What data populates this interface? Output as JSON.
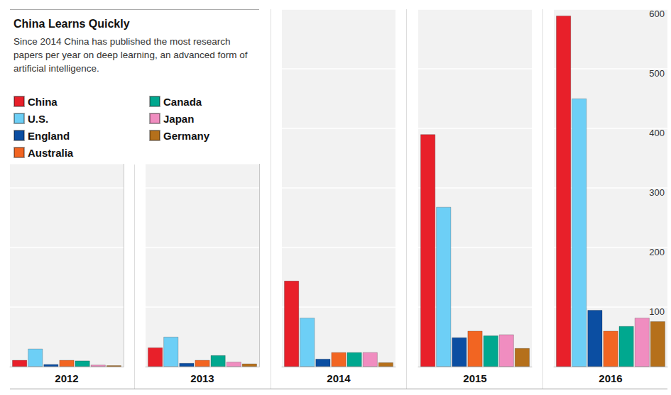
{
  "chart_data": [
    {
      "type": "bar",
      "title": "China Learns Quickly",
      "subtitle": "Since 2014 China has published the most research papers per year on deep learning, an advanced form of artificial intelligence.",
      "legend": "top-left",
      "categories": [
        "2012"
      ],
      "series": [
        {
          "name": "China",
          "color": "#e8202a",
          "values": [
            11
          ]
        },
        {
          "name": "U.S.",
          "color": "#6dcff6",
          "values": [
            30
          ]
        },
        {
          "name": "England",
          "color": "#0b4ea2",
          "values": [
            4
          ]
        },
        {
          "name": "Australia",
          "color": "#f26522",
          "values": [
            11
          ]
        },
        {
          "name": "Canada",
          "color": "#00a88f",
          "values": [
            10
          ]
        },
        {
          "name": "Japan",
          "color": "#f08dc0",
          "values": [
            3
          ]
        },
        {
          "name": "Germany",
          "color": "#b5701b",
          "values": [
            2
          ]
        }
      ],
      "ylim": [
        0,
        340
      ],
      "yticks": [
        100,
        200,
        300
      ],
      "grid": true,
      "tick_labels": "x"
    },
    {
      "type": "bar",
      "categories": [
        "2013"
      ],
      "series": [
        {
          "name": "China",
          "color": "#e8202a",
          "values": [
            32
          ]
        },
        {
          "name": "U.S.",
          "color": "#6dcff6",
          "values": [
            50
          ]
        },
        {
          "name": "England",
          "color": "#0b4ea2",
          "values": [
            6
          ]
        },
        {
          "name": "Australia",
          "color": "#f26522",
          "values": [
            11
          ]
        },
        {
          "name": "Canada",
          "color": "#00a88f",
          "values": [
            19
          ]
        },
        {
          "name": "Japan",
          "color": "#f08dc0",
          "values": [
            8
          ]
        },
        {
          "name": "Germany",
          "color": "#b5701b",
          "values": [
            5
          ]
        }
      ],
      "ylim": [
        0,
        340
      ],
      "yticks": [
        100,
        200,
        300
      ],
      "grid": true,
      "tick_labels": "x"
    },
    {
      "type": "bar",
      "categories": [
        "2014"
      ],
      "series": [
        {
          "name": "China",
          "color": "#e8202a",
          "values": [
            144
          ]
        },
        {
          "name": "U.S.",
          "color": "#6dcff6",
          "values": [
            82
          ]
        },
        {
          "name": "England",
          "color": "#0b4ea2",
          "values": [
            13
          ]
        },
        {
          "name": "Australia",
          "color": "#f26522",
          "values": [
            24
          ]
        },
        {
          "name": "Canada",
          "color": "#00a88f",
          "values": [
            24
          ]
        },
        {
          "name": "Japan",
          "color": "#f08dc0",
          "values": [
            24
          ]
        },
        {
          "name": "Germany",
          "color": "#b5701b",
          "values": [
            7
          ]
        }
      ],
      "ylim": [
        0,
        600
      ],
      "yticks": [
        100,
        200,
        300,
        400,
        500,
        600
      ],
      "grid": true,
      "tick_labels": "x"
    },
    {
      "type": "bar",
      "categories": [
        "2015"
      ],
      "series": [
        {
          "name": "China",
          "color": "#e8202a",
          "values": [
            390
          ]
        },
        {
          "name": "U.S.",
          "color": "#6dcff6",
          "values": [
            268
          ]
        },
        {
          "name": "England",
          "color": "#0b4ea2",
          "values": [
            49
          ]
        },
        {
          "name": "Australia",
          "color": "#f26522",
          "values": [
            60
          ]
        },
        {
          "name": "Canada",
          "color": "#00a88f",
          "values": [
            52
          ]
        },
        {
          "name": "Japan",
          "color": "#f08dc0",
          "values": [
            54
          ]
        },
        {
          "name": "Germany",
          "color": "#b5701b",
          "values": [
            31
          ]
        }
      ],
      "ylim": [
        0,
        600
      ],
      "yticks": [
        100,
        200,
        300,
        400,
        500,
        600
      ],
      "grid": true,
      "tick_labels": "x"
    },
    {
      "type": "bar",
      "categories": [
        "2016"
      ],
      "series": [
        {
          "name": "China",
          "color": "#e8202a",
          "values": [
            589
          ]
        },
        {
          "name": "U.S.",
          "color": "#6dcff6",
          "values": [
            450
          ]
        },
        {
          "name": "England",
          "color": "#0b4ea2",
          "values": [
            95
          ]
        },
        {
          "name": "Australia",
          "color": "#f26522",
          "values": [
            60
          ]
        },
        {
          "name": "Canada",
          "color": "#00a88f",
          "values": [
            68
          ]
        },
        {
          "name": "Japan",
          "color": "#f08dc0",
          "values": [
            82
          ]
        },
        {
          "name": "Germany",
          "color": "#b5701b",
          "values": [
            76
          ]
        }
      ],
      "ylim": [
        0,
        600
      ],
      "yticks": [
        100,
        200,
        300,
        400,
        500,
        600
      ],
      "grid": true
    }
  ]
}
